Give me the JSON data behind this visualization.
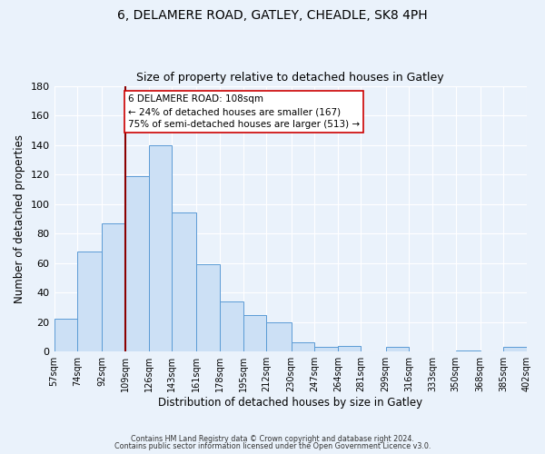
{
  "title_line1": "6, DELAMERE ROAD, GATLEY, CHEADLE, SK8 4PH",
  "title_line2": "Size of property relative to detached houses in Gatley",
  "xlabel": "Distribution of detached houses by size in Gatley",
  "ylabel": "Number of detached properties",
  "bin_labels": [
    "57sqm",
    "74sqm",
    "92sqm",
    "109sqm",
    "126sqm",
    "143sqm",
    "161sqm",
    "178sqm",
    "195sqm",
    "212sqm",
    "230sqm",
    "247sqm",
    "264sqm",
    "281sqm",
    "299sqm",
    "316sqm",
    "333sqm",
    "350sqm",
    "368sqm",
    "385sqm",
    "402sqm"
  ],
  "bin_edges": [
    57,
    74,
    92,
    109,
    126,
    143,
    161,
    178,
    195,
    212,
    230,
    247,
    264,
    281,
    299,
    316,
    333,
    350,
    368,
    385,
    402
  ],
  "bar_values": [
    22,
    68,
    87,
    119,
    140,
    94,
    59,
    34,
    25,
    20,
    6,
    3,
    4,
    0,
    3,
    0,
    0,
    1,
    0,
    3
  ],
  "bar_color": "#cce0f5",
  "bar_edge_color": "#5b9bd5",
  "vline_x": 109,
  "vline_color": "#8b0000",
  "annotation_title": "6 DELAMERE ROAD: 108sqm",
  "annotation_line1": "← 24% of detached houses are smaller (167)",
  "annotation_line2": "75% of semi-detached houses are larger (513) →",
  "annotation_box_color": "#ffffff",
  "annotation_box_edge": "#cc0000",
  "ylim": [
    0,
    180
  ],
  "yticks": [
    0,
    20,
    40,
    60,
    80,
    100,
    120,
    140,
    160,
    180
  ],
  "footer_line1": "Contains HM Land Registry data © Crown copyright and database right 2024.",
  "footer_line2": "Contains public sector information licensed under the Open Government Licence v3.0.",
  "bg_color": "#eaf2fb",
  "plot_bg_color": "#eaf2fb"
}
